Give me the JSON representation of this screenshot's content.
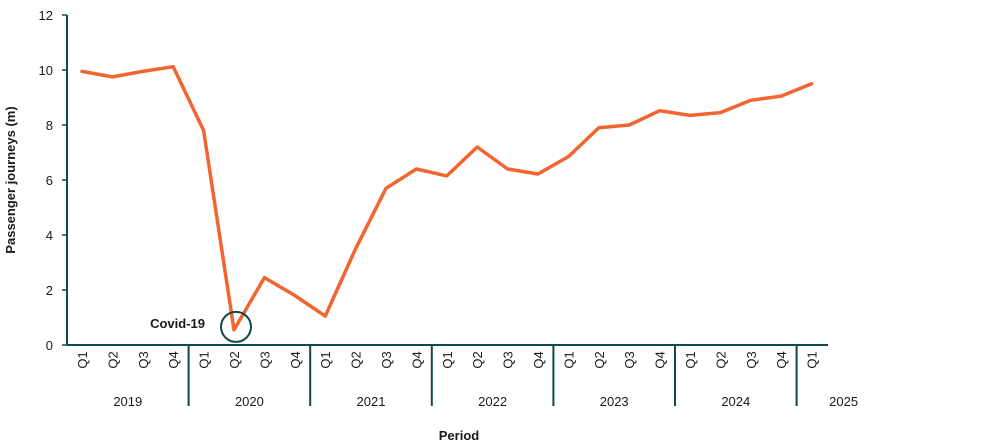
{
  "colors": {
    "line": "#f26430",
    "axis": "#0f4a4a",
    "annotation": "#0f4a4a"
  },
  "chart_data": {
    "type": "line",
    "title": "",
    "xlabel": "Period",
    "ylabel": "Passenger journeys (m)",
    "ylim": [
      0,
      12
    ],
    "yticks": [
      0,
      2,
      4,
      6,
      8,
      10,
      12
    ],
    "grid": false,
    "categories": [
      "Q1",
      "Q2",
      "Q3",
      "Q4",
      "Q1",
      "Q2",
      "Q3",
      "Q4",
      "Q1",
      "Q2",
      "Q3",
      "Q4",
      "Q1",
      "Q2",
      "Q3",
      "Q4",
      "Q1",
      "Q2",
      "Q3",
      "Q4",
      "Q1",
      "Q2",
      "Q3",
      "Q4",
      "Q1"
    ],
    "years": [
      {
        "label": "2019",
        "quarters": 4
      },
      {
        "label": "2020",
        "quarters": 4
      },
      {
        "label": "2021",
        "quarters": 4
      },
      {
        "label": "2022",
        "quarters": 4
      },
      {
        "label": "2023",
        "quarters": 4
      },
      {
        "label": "2024",
        "quarters": 4
      },
      {
        "label": "2025",
        "quarters": 1
      }
    ],
    "values": [
      9.95,
      9.75,
      9.95,
      10.12,
      7.8,
      0.55,
      2.45,
      1.8,
      1.05,
      3.5,
      5.7,
      6.4,
      6.15,
      7.2,
      6.4,
      6.22,
      6.85,
      7.9,
      8.0,
      8.52,
      8.35,
      8.45,
      8.9,
      9.05,
      9.5
    ],
    "annotations": [
      {
        "text": "Covid-19",
        "point_index": 5
      }
    ]
  }
}
